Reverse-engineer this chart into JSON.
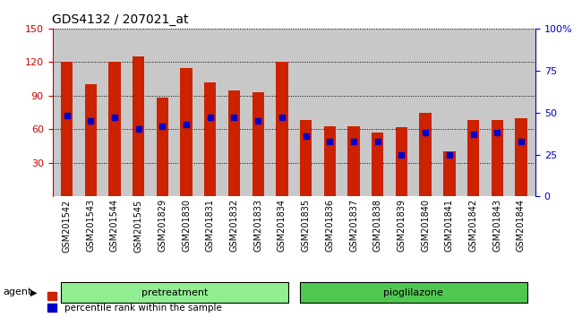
{
  "title": "GDS4132 / 207021_at",
  "samples": [
    "GSM201542",
    "GSM201543",
    "GSM201544",
    "GSM201545",
    "GSM201829",
    "GSM201830",
    "GSM201831",
    "GSM201832",
    "GSM201833",
    "GSM201834",
    "GSM201835",
    "GSM201836",
    "GSM201837",
    "GSM201838",
    "GSM201839",
    "GSM201840",
    "GSM201841",
    "GSM201842",
    "GSM201843",
    "GSM201844"
  ],
  "count_values": [
    120,
    100,
    120,
    125,
    88,
    115,
    102,
    95,
    93,
    120,
    68,
    63,
    63,
    57,
    62,
    75,
    40,
    68,
    68,
    70
  ],
  "percentile_values": [
    48,
    45,
    47,
    40,
    42,
    43,
    47,
    47,
    45,
    47,
    36,
    33,
    33,
    33,
    25,
    38,
    25,
    37,
    38,
    33
  ],
  "groups": [
    {
      "label": "pretreatment",
      "start": 0,
      "end": 9,
      "color": "#90EE90"
    },
    {
      "label": "pioglilazone",
      "start": 10,
      "end": 19,
      "color": "#50C850"
    }
  ],
  "ylim_left": [
    0,
    150
  ],
  "ylim_right": [
    0,
    100
  ],
  "yticks_left": [
    30,
    60,
    90,
    120,
    150
  ],
  "yticks_right": [
    0,
    25,
    50,
    75,
    100
  ],
  "left_color": "#CC0000",
  "right_color": "#0000CC",
  "bar_color": "#CC2200",
  "percentile_color": "#0000CC",
  "grid_color": "#000000",
  "background_color": "#C8C8C8",
  "bar_width": 0.5
}
